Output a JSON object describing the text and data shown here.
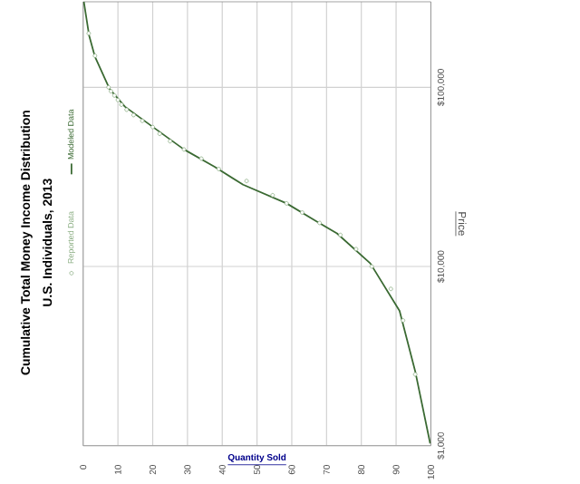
{
  "chart_data": {
    "type": "line",
    "title": "Cumulative Total Money Income Distribution",
    "subtitle": "U.S. Individuals, 2013",
    "xlabel": "Quantity Sold",
    "ylabel": "Price",
    "log": "y",
    "xlim": [
      0,
      100
    ],
    "xticks": [
      0,
      10,
      20,
      30,
      40,
      50,
      60,
      70,
      80,
      90,
      100
    ],
    "ylim": [
      1000,
      300000
    ],
    "yticks": [
      {
        "value": 1000,
        "label": "$1,000"
      },
      {
        "value": 10000,
        "label": "$10,000"
      },
      {
        "value": 100000,
        "label": "$100,000"
      }
    ],
    "grid": true,
    "legend": "left",
    "series": [
      {
        "name": "Reported Data",
        "type": "scatter",
        "marker": "circle",
        "color": "#8cae84",
        "x": [
          95.5,
          92,
          88.5,
          83,
          78.5,
          74,
          68,
          63,
          58.5,
          54.5,
          47,
          39,
          34,
          29,
          25,
          22,
          20,
          17,
          14.5,
          12.5,
          11,
          10,
          9,
          8,
          7.3,
          3.4,
          1.6
        ],
        "values": [
          2500,
          5000,
          7500,
          10000,
          12500,
          15000,
          17500,
          20000,
          22500,
          25000,
          30000,
          35000,
          40000,
          45000,
          50000,
          55000,
          60000,
          65000,
          70000,
          75000,
          80000,
          85000,
          90000,
          95000,
          100000,
          150000,
          200000
        ]
      },
      {
        "name": "Modeled Data",
        "marker": "none",
        "color": "#3b6a33",
        "x": [
          99.8,
          95.5,
          91,
          82.6,
          73,
          67,
          58.5,
          46,
          37.8,
          29,
          20.6,
          12,
          7.6,
          3.4,
          1.7,
          0.2
        ],
        "values": [
          1030,
          2600,
          5650,
          10400,
          15300,
          17900,
          22500,
          28600,
          36000,
          45000,
          59000,
          78000,
          98000,
          148000,
          195000,
          300000
        ]
      }
    ]
  }
}
